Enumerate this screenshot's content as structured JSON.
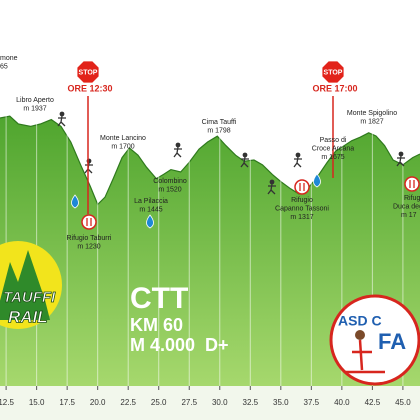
{
  "chart_data": {
    "type": "area",
    "color": "#6dbb3c",
    "x": [
      12.0,
      12.8,
      13.5,
      14.5,
      15.3,
      16.2,
      17.0,
      17.8,
      18.6,
      19.4,
      20.0,
      20.6,
      21.3,
      22.0,
      22.6,
      23.3,
      24.0,
      24.8,
      25.4,
      26.0,
      26.8,
      27.5,
      28.3,
      29.0,
      29.8,
      30.5,
      31.3,
      32.0,
      32.8,
      33.5,
      34.3,
      35.0,
      35.8,
      36.5,
      37.2,
      38.0,
      38.8,
      39.5,
      40.2,
      40.8,
      41.5,
      42.2,
      42.8,
      43.5,
      44.2,
      45.0,
      45.8,
      46.4
    ],
    "values": [
      1950,
      1965,
      1900,
      1880,
      1900,
      1937,
      1880,
      1750,
      1560,
      1380,
      1230,
      1290,
      1450,
      1620,
      1700,
      1640,
      1540,
      1445,
      1480,
      1520,
      1500,
      1580,
      1690,
      1750,
      1798,
      1720,
      1640,
      1590,
      1600,
      1560,
      1480,
      1420,
      1360,
      1317,
      1360,
      1460,
      1580,
      1675,
      1720,
      1760,
      1790,
      1827,
      1800,
      1720,
      1600,
      1560,
      1620,
      1650
    ],
    "xlim": [
      12,
      46.4
    ],
    "ylim": [
      800,
      2200
    ],
    "xticks": [
      12.5,
      {
        "value": 15,
        "label": "15.0"
      },
      17.5,
      {
        "value": 20,
        "label": "20.0"
      },
      22.5,
      {
        "value": 25,
        "label": "25.0"
      },
      27.5,
      {
        "value": 30,
        "label": "30.0"
      },
      32.5,
      {
        "value": 35,
        "label": "35.0"
      },
      37.5,
      {
        "value": 40,
        "label": "40.0"
      },
      42.5,
      {
        "value": 45,
        "label": "45.0"
      }
    ],
    "grid": true,
    "places": [
      [
        "mone",
        "65"
      ],
      [
        "Libro Aperto",
        "m 1937"
      ],
      [
        "Monte Lancino",
        "m 1700"
      ],
      [
        "Colombino",
        "m 1520"
      ],
      [
        "La Pilaccia",
        "m 1445"
      ],
      [
        "Cima Tauffi",
        "m 1798"
      ],
      [
        "Passo di",
        "Croce Arcana",
        "m 1675"
      ],
      [
        "Monte Spigolino",
        "m 1827"
      ],
      [
        "Rifugio Taburri",
        "m 1230"
      ],
      [
        "Rifugio",
        "Capanno Tassoni",
        "m 1317"
      ],
      [
        "Rifugi",
        "Duca degli",
        "m 17"
      ]
    ],
    "stops": [
      {
        "sign": "STOP",
        "time": "ORE 12:30"
      },
      {
        "sign": "STOP",
        "time": "ORE 17:00"
      }
    ],
    "banner": [
      "CTT",
      "KM 60",
      "M 4.000  D+"
    ],
    "logos": [
      "TAUFFI",
      "RAIL",
      "ASD C",
      "FA"
    ]
  }
}
